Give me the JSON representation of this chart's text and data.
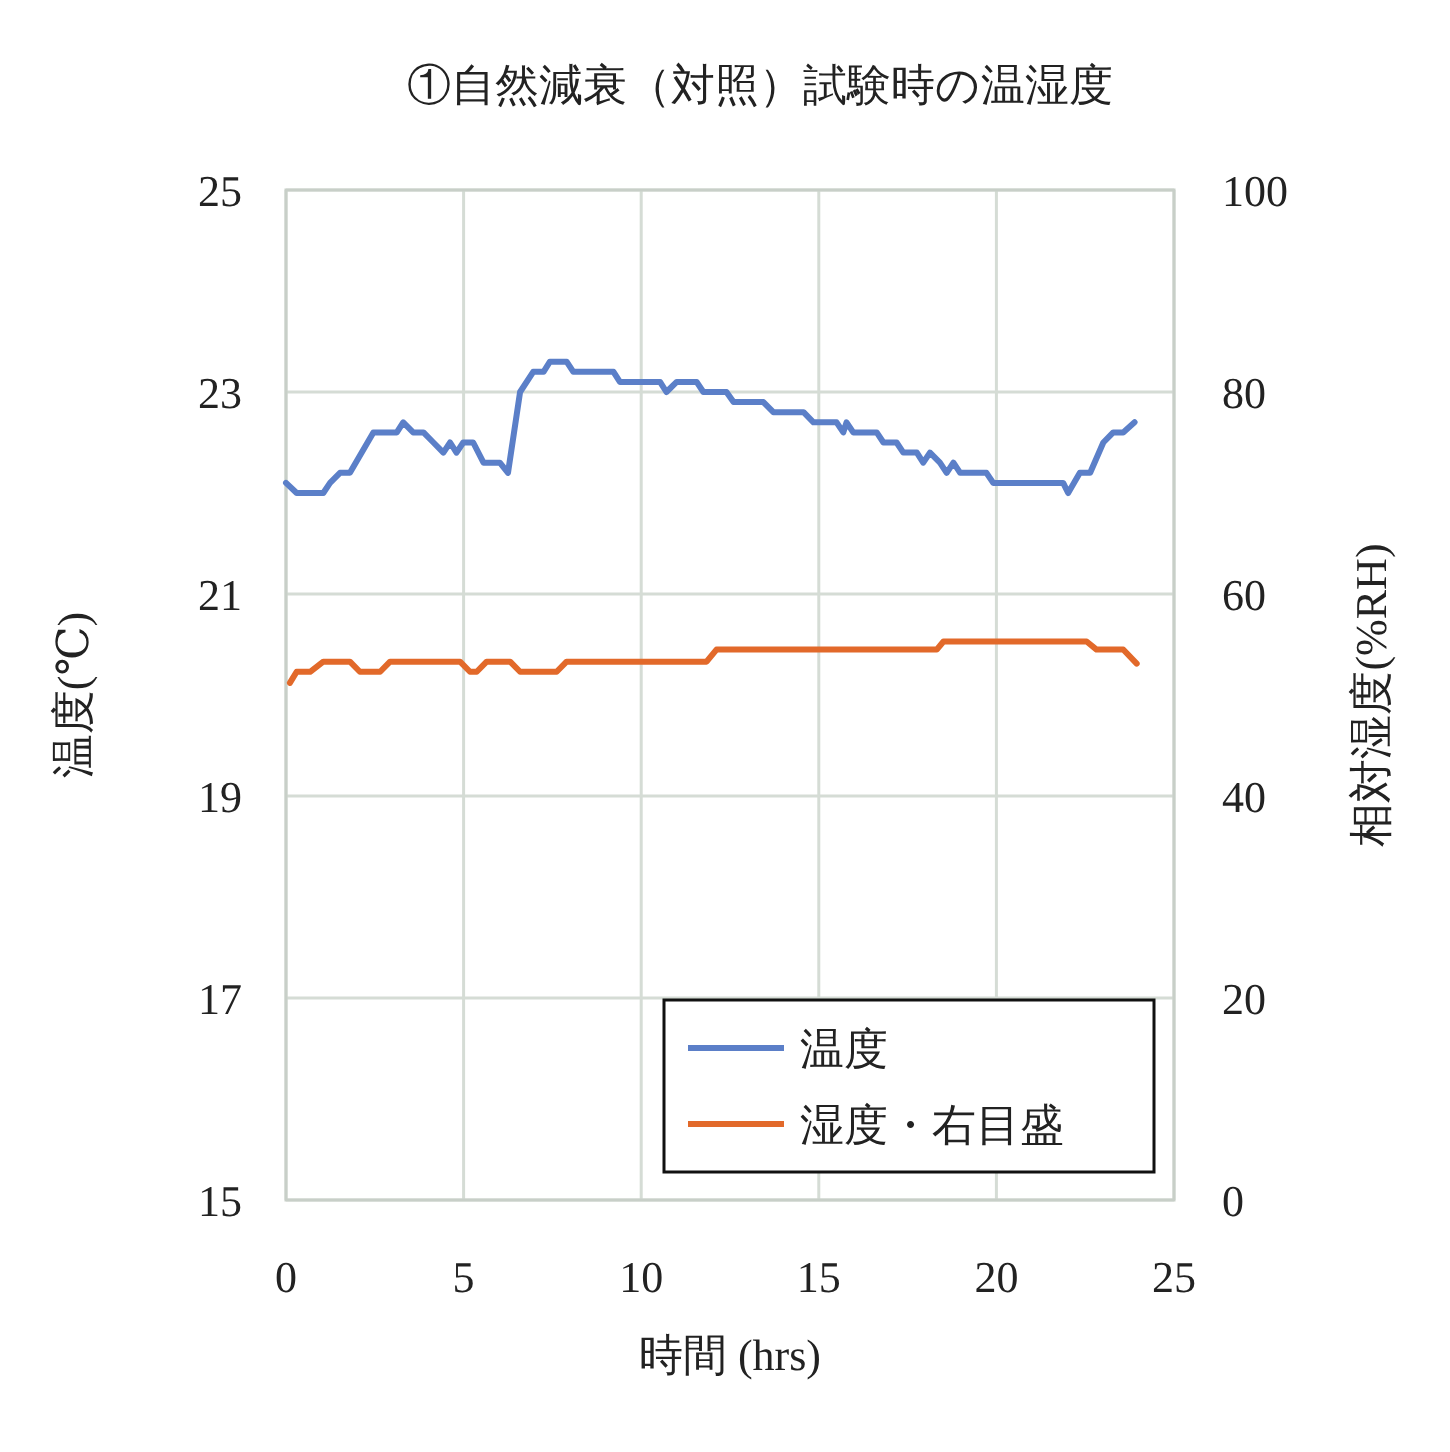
{
  "chart_data": {
    "type": "line",
    "title": "①自然減衰（対照）試験時の温湿度",
    "xlabel": "時間 (hrs)",
    "ylabel": "温度(℃)",
    "y2label": "相対湿度(%RH)",
    "xlim": [
      0,
      25
    ],
    "xticks": [
      0,
      5,
      10,
      15,
      20,
      25
    ],
    "ylim": [
      15,
      25
    ],
    "yticks": [
      15,
      17,
      19,
      21,
      23,
      25
    ],
    "y2lim": [
      0,
      100
    ],
    "y2ticks": [
      0,
      20,
      40,
      60,
      80,
      100
    ],
    "grid": true,
    "legend": "bottom right",
    "marker": "none",
    "line_style": "solid",
    "series": [
      {
        "name": "温度",
        "color": "#5b7fc8",
        "x": [
          0,
          0.3,
          1.05,
          1.24,
          1.52,
          1.8,
          2.46,
          3.12,
          3.3,
          3.58,
          3.87,
          4.15,
          4.43,
          4.62,
          4.8,
          4.99,
          5.27,
          5.56,
          6.02,
          6.25,
          6.59,
          6.96,
          7.25,
          7.43,
          7.9,
          8.09,
          9.22,
          9.4,
          10.53,
          10.71,
          11.0,
          11.56,
          11.75,
          12.4,
          12.6,
          13.44,
          13.72,
          14.57,
          14.85,
          15.5,
          15.69,
          15.78,
          15.97,
          16.63,
          16.82,
          17.19,
          17.38,
          17.76,
          17.94,
          18.13,
          18.41,
          18.6,
          18.79,
          18.98,
          19.72,
          19.91,
          21.88,
          22.02,
          22.35,
          22.64,
          23.01,
          23.29,
          23.57,
          23.89
        ],
        "values": [
          22.1,
          22.0,
          22.0,
          22.1,
          22.2,
          22.2,
          22.6,
          22.6,
          22.7,
          22.6,
          22.6,
          22.5,
          22.4,
          22.5,
          22.4,
          22.5,
          22.5,
          22.3,
          22.3,
          22.2,
          23.0,
          23.2,
          23.2,
          23.3,
          23.3,
          23.2,
          23.2,
          23.1,
          23.1,
          23.0,
          23.1,
          23.1,
          23.0,
          23.0,
          22.9,
          22.9,
          22.8,
          22.8,
          22.7,
          22.7,
          22.6,
          22.7,
          22.6,
          22.6,
          22.5,
          22.5,
          22.4,
          22.4,
          22.3,
          22.4,
          22.3,
          22.2,
          22.3,
          22.2,
          22.2,
          22.1,
          22.1,
          22.0,
          22.2,
          22.2,
          22.5,
          22.6,
          22.6,
          22.7
        ]
      },
      {
        "name": "湿度・右目盛",
        "color": "#e2692a",
        "axis": "y2",
        "x": [
          0.11,
          0.3,
          0.68,
          1.05,
          1.8,
          2.08,
          2.65,
          2.93,
          4.9,
          5.18,
          5.37,
          5.65,
          6.31,
          6.59,
          7.62,
          7.9,
          11.84,
          12.12,
          18.32,
          18.51,
          22.54,
          22.82,
          23.57,
          23.95
        ],
        "values": [
          51.2,
          52.3,
          52.3,
          53.3,
          53.3,
          52.3,
          52.3,
          53.3,
          53.3,
          52.3,
          52.3,
          53.3,
          53.3,
          52.3,
          52.3,
          53.3,
          53.3,
          54.5,
          54.5,
          55.3,
          55.3,
          54.5,
          54.5,
          53.1
        ]
      }
    ]
  }
}
